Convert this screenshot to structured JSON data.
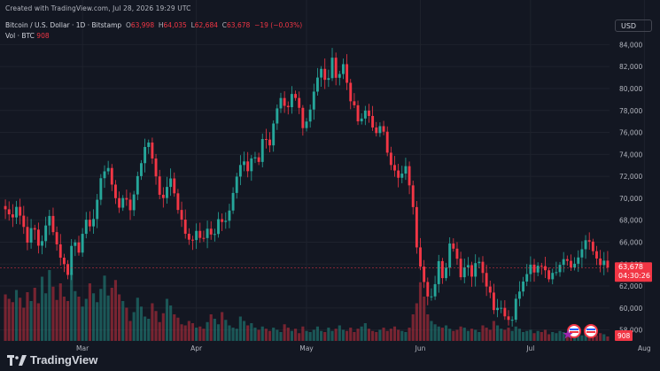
{
  "header": {
    "created": "Created with TradingView.com, Jul 28, 2026 19:29 UTC"
  },
  "legend": {
    "symbol": "Bitcoin / U.S. Dollar · 1D · Bitstamp",
    "o_label": "O",
    "o": "63,998",
    "h_label": "H",
    "h": "64,035",
    "l_label": "L",
    "l": "62,684",
    "c_label": "C",
    "c": "63,678",
    "change": "−19 (−0.03%)",
    "vol_label": "Vol · BTC",
    "vol": "908"
  },
  "currency_button": "USD",
  "brand": {
    "name": "TradingView"
  },
  "price_tag": {
    "price": "63,678",
    "countdown": "04:30:26"
  },
  "volume_tag": "908",
  "colors": {
    "up": "#26a69a",
    "down": "#f23645",
    "background": "#131722",
    "grid": "#1e222d",
    "text": "#b2b5be"
  },
  "chart_data": {
    "type": "candlestick",
    "title": "Bitcoin / U.S. Dollar · 1D · Bitstamp",
    "ylim": [
      57000,
      85000
    ],
    "y_ticks": [
      58000,
      60000,
      62000,
      64000,
      66000,
      68000,
      70000,
      72000,
      74000,
      76000,
      78000,
      80000,
      82000,
      84000
    ],
    "y_tick_labels": [
      "58,000",
      "60,000",
      "62,000",
      "64,000",
      "66,000",
      "68,000",
      "70,000",
      "72,000",
      "74,000",
      "76,000",
      "78,000",
      "80,000",
      "82,000",
      "84,000"
    ],
    "x_tick_labels": [
      {
        "label": "Mar",
        "index": 21
      },
      {
        "label": "Apr",
        "index": 52
      },
      {
        "label": "May",
        "index": 82
      },
      {
        "label": "Jun",
        "index": 113
      },
      {
        "label": "Jul",
        "index": 143
      },
      {
        "label": "Aug",
        "index": 174
      }
    ],
    "grid": true,
    "legend_placement": "top-left",
    "last_close": 63678,
    "volume_series": [
      4.2,
      3.8,
      3.5,
      4.6,
      3.9,
      3.0,
      4.4,
      3.6,
      4.8,
      3.4,
      5.8,
      4.3,
      6.4,
      4.9,
      3.7,
      5.2,
      4.0,
      3.6,
      6.1,
      4.5,
      4.0,
      3.1,
      3.8,
      5.2,
      4.3,
      3.5,
      4.7,
      5.9,
      4.1,
      4.8,
      5.5,
      4.2,
      3.6,
      3.0,
      1.8,
      2.6,
      3.9,
      3.1,
      2.2,
      2.0,
      3.4,
      2.7,
      1.7,
      2.5,
      3.8,
      3.2,
      2.4,
      2.1,
      1.5,
      1.4,
      1.8,
      1.6,
      1.2,
      1.3,
      1.1,
      1.7,
      2.4,
      2.0,
      1.5,
      2.6,
      1.9,
      1.4,
      1.2,
      1.1,
      2.2,
      1.8,
      1.4,
      1.6,
      1.2,
      1.0,
      1.3,
      1.1,
      0.9,
      1.2,
      1.0,
      0.8,
      1.5,
      1.2,
      0.9,
      1.1,
      0.7,
      1.3,
      0.9,
      0.8,
      1.0,
      1.3,
      0.9,
      0.8,
      1.2,
      0.9,
      1.1,
      1.4,
      1.0,
      0.9,
      1.2,
      0.8,
      1.1,
      1.3,
      1.6,
      1.1,
      0.9,
      0.8,
      1.0,
      1.2,
      0.9,
      1.1,
      1.3,
      1.0,
      0.9,
      0.8,
      1.2,
      2.4,
      3.4,
      5.3,
      4.0,
      2.4,
      1.8,
      1.5,
      1.3,
      1.2,
      1.4,
      1.1,
      0.9,
      1.0,
      1.3,
      1.2,
      0.9,
      1.1,
      1.0,
      0.8,
      1.4,
      1.2,
      1.0,
      1.8,
      1.4,
      1.1,
      1.0,
      1.2,
      0.9,
      1.3,
      1.1,
      0.8,
      0.9,
      1.0,
      0.7,
      0.9,
      0.8,
      1.0,
      0.6,
      0.8,
      0.7,
      0.9,
      0.8,
      0.6,
      0.7,
      0.9,
      0.6,
      0.5,
      0.7,
      0.8,
      0.6,
      0.5,
      0.7,
      0.6,
      0.4
    ],
    "anchors": [
      [
        0,
        69000
      ],
      [
        1,
        68200
      ],
      [
        2,
        69500
      ],
      [
        3,
        67800
      ],
      [
        4,
        66200
      ],
      [
        5,
        67500
      ],
      [
        6,
        65500
      ],
      [
        7,
        67000
      ],
      [
        8,
        68500
      ],
      [
        9,
        66000
      ],
      [
        10,
        64500
      ],
      [
        11,
        63000
      ],
      [
        12,
        66500
      ],
      [
        13,
        65200
      ],
      [
        14,
        68000
      ],
      [
        15,
        67000
      ],
      [
        16,
        69200
      ],
      [
        17,
        71500
      ],
      [
        18,
        73500
      ],
      [
        19,
        71000
      ],
      [
        20,
        69000
      ],
      [
        21,
        70500
      ],
      [
        22,
        68500
      ],
      [
        23,
        71000
      ],
      [
        24,
        73000
      ],
      [
        25,
        75500
      ],
      [
        26,
        74000
      ],
      [
        27,
        71500
      ],
      [
        28,
        69500
      ],
      [
        29,
        72000
      ],
      [
        30,
        70500
      ],
      [
        31,
        68500
      ],
      [
        32,
        66800
      ],
      [
        33,
        65500
      ],
      [
        34,
        67500
      ],
      [
        35,
        66000
      ],
      [
        36,
        67800
      ],
      [
        37,
        66500
      ],
      [
        38,
        68200
      ],
      [
        39,
        67200
      ],
      [
        40,
        69500
      ],
      [
        41,
        71800
      ],
      [
        42,
        73500
      ],
      [
        43,
        72400
      ],
      [
        44,
        74200
      ],
      [
        45,
        73500
      ],
      [
        46,
        76000
      ],
      [
        47,
        75000
      ],
      [
        48,
        77500
      ],
      [
        49,
        78800
      ],
      [
        50,
        77500
      ],
      [
        51,
        79500
      ],
      [
        52,
        78600
      ],
      [
        53,
        76500
      ],
      [
        54,
        77800
      ],
      [
        55,
        80500
      ],
      [
        56,
        81800
      ],
      [
        57,
        80200
      ],
      [
        58,
        82500
      ],
      [
        59,
        81000
      ],
      [
        60,
        82200
      ],
      [
        61,
        79800
      ],
      [
        62,
        78000
      ],
      [
        63,
        76500
      ],
      [
        64,
        78000
      ],
      [
        65,
        77200
      ],
      [
        66,
        75500
      ],
      [
        67,
        76800
      ],
      [
        68,
        74200
      ],
      [
        69,
        72500
      ],
      [
        70,
        71500
      ],
      [
        71,
        72800
      ],
      [
        72,
        71000
      ],
      [
        73,
        66000
      ],
      [
        74,
        63500
      ],
      [
        75,
        61500
      ],
      [
        76,
        60800
      ],
      [
        77,
        64000
      ],
      [
        78,
        62500
      ],
      [
        79,
        66500
      ],
      [
        80,
        65000
      ],
      [
        81,
        63000
      ],
      [
        82,
        64500
      ],
      [
        83,
        62800
      ],
      [
        84,
        64800
      ],
      [
        85,
        63200
      ],
      [
        86,
        61500
      ],
      [
        87,
        59800
      ],
      [
        88,
        60500
      ],
      [
        89,
        58800
      ],
      [
        90,
        59300
      ],
      [
        91,
        61200
      ],
      [
        92,
        62200
      ],
      [
        93,
        63800
      ],
      [
        94,
        63000
      ],
      [
        95,
        64200
      ],
      [
        96,
        63500
      ],
      [
        97,
        62600
      ],
      [
        98,
        63800
      ],
      [
        99,
        64800
      ],
      [
        100,
        64400
      ],
      [
        101,
        63800
      ],
      [
        102,
        64900
      ],
      [
        103,
        66200
      ],
      [
        104,
        65500
      ],
      [
        105,
        64600
      ],
      [
        106,
        64100
      ],
      [
        107,
        63678
      ]
    ]
  }
}
